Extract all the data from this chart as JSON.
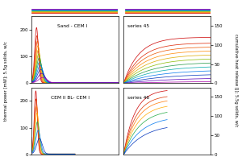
{
  "title_top_left": "Sand - CEM I",
  "title_top_right": "series 45",
  "title_bot_left": "CEM II BL- CEM I",
  "title_bot_right": "series 46",
  "ylabel_left": "thermal power [mW]; 5.5g solids, w/c",
  "ylabel_right": "cumulative heat release [J]; 5.5g solids, w/c",
  "ylim_power": [
    0,
    250
  ],
  "ylim_heat": [
    0,
    175
  ],
  "yticks_power": [
    0,
    100,
    200
  ],
  "yticks_heat": [
    0,
    50,
    100,
    150
  ],
  "colors_45": [
    "#cc0000",
    "#dd2200",
    "#ee5500",
    "#ff8800",
    "#ddaa00",
    "#88bb00",
    "#229944",
    "#00aaaa",
    "#0077ee",
    "#0033bb",
    "#5500bb",
    "#aa00aa"
  ],
  "colors_46": [
    "#cc0000",
    "#dd3300",
    "#ff7700",
    "#ffaa00",
    "#22aa44",
    "#0077ee",
    "#0033bb"
  ],
  "strip_bg": "#ffe8e8",
  "background": "#ffffff"
}
